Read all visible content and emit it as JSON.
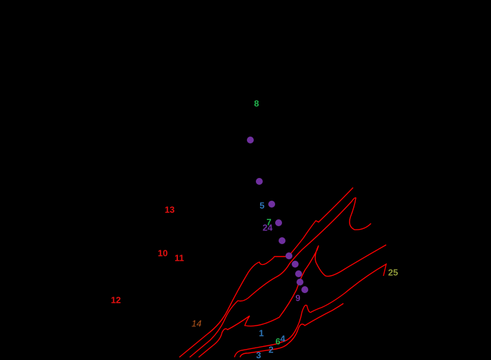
{
  "labels": [
    "8",
    "5",
    "7",
    "24",
    "9",
    "25",
    "13",
    "10",
    "11",
    "12",
    "14",
    "1",
    "6",
    "4",
    "2",
    "3"
  ]
}
